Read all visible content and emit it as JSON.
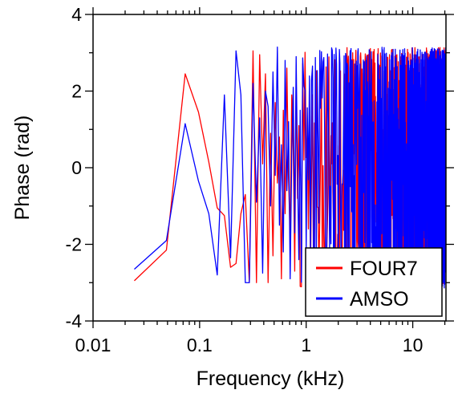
{
  "chart_data": {
    "type": "line",
    "title": "",
    "xlabel": "Frequency (kHz)",
    "ylabel": "Phase (rad)",
    "xscale": "log",
    "xlim": [
      0.01,
      20.5
    ],
    "ylim": [
      -4,
      4
    ],
    "grid": false,
    "legend_position": "bottom-right",
    "x_tick_labels": [
      "0.01",
      "0.1",
      "1",
      "10"
    ],
    "x_tick_values": [
      0.01,
      0.1,
      1,
      10
    ],
    "y_tick_labels": [
      "4",
      "2",
      "0",
      "-2",
      "-4"
    ],
    "y_tick_values": [
      4,
      2,
      0,
      -2,
      -4
    ],
    "series": [
      {
        "name": "FOUR7",
        "color": "#ff0000",
        "df": 0.0244,
        "seed": 7,
        "phase": [
          -2.95,
          -2.15,
          2.45,
          1.45,
          0.15,
          -1.05,
          -1.25,
          -2.6,
          -2.5,
          -1.2,
          -0.7,
          -3.0,
          3.05,
          -3.0,
          2.95,
          0.1,
          2.45,
          -3.0,
          0.9,
          -2.3,
          1.7,
          -0.4,
          0.8,
          -2.9,
          1.5,
          -1.2,
          2.6,
          -0.3,
          -1.8,
          1.9,
          0.5,
          -2.7,
          2.2,
          -0.8,
          1.1,
          -3.1
        ]
      },
      {
        "name": "AMSO",
        "color": "#0000ff",
        "df": 0.0244,
        "seed": 13,
        "phase": [
          -2.65,
          -1.9,
          1.15,
          -0.35,
          -1.2,
          -2.8,
          1.9,
          -2.35,
          3.05,
          1.9,
          -3.0,
          -3.0,
          2.2,
          -0.9,
          1.3,
          -2.75,
          2.0,
          1.6,
          -1.0,
          2.5,
          -0.2,
          3.15,
          -1.5,
          0.6,
          -2.2,
          2.8,
          -0.6,
          1.2,
          -2.9,
          0.3,
          2.1,
          -1.7,
          2.9,
          -0.1,
          -2.4,
          1.5
        ]
      }
    ]
  }
}
